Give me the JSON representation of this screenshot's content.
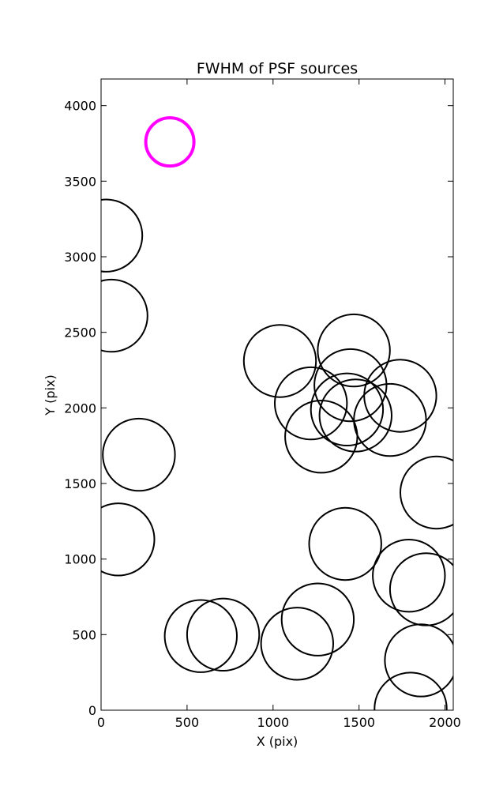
{
  "chart_data": {
    "type": "scatter",
    "title": "FWHM of PSF sources",
    "xlabel": "X (pix)",
    "ylabel": "Y (pix)",
    "xlim": [
      0,
      2048
    ],
    "ylim": [
      0,
      4176
    ],
    "xticks": [
      0,
      500,
      1000,
      1500,
      2000
    ],
    "yticks": [
      0,
      500,
      1000,
      1500,
      2000,
      2500,
      3000,
      3500,
      4000
    ],
    "grid": false,
    "legend": "none",
    "highlight_color": "#ff00ff",
    "default_color": "#000000",
    "sources": [
      {
        "x": 400,
        "y": 3760,
        "r": 140,
        "highlight": true
      },
      {
        "x": 30,
        "y": 3140,
        "r": 210
      },
      {
        "x": 60,
        "y": 2610,
        "r": 210
      },
      {
        "x": 1040,
        "y": 2310,
        "r": 210
      },
      {
        "x": 1470,
        "y": 2380,
        "r": 210
      },
      {
        "x": 1450,
        "y": 2150,
        "r": 210
      },
      {
        "x": 1740,
        "y": 2080,
        "r": 210
      },
      {
        "x": 1220,
        "y": 2030,
        "r": 210
      },
      {
        "x": 1430,
        "y": 1990,
        "r": 210
      },
      {
        "x": 1480,
        "y": 1950,
        "r": 210
      },
      {
        "x": 1680,
        "y": 1920,
        "r": 210
      },
      {
        "x": 1280,
        "y": 1810,
        "r": 210
      },
      {
        "x": 220,
        "y": 1690,
        "r": 210
      },
      {
        "x": 1950,
        "y": 1440,
        "r": 210
      },
      {
        "x": 100,
        "y": 1130,
        "r": 210
      },
      {
        "x": 1420,
        "y": 1100,
        "r": 210
      },
      {
        "x": 1790,
        "y": 890,
        "r": 210
      },
      {
        "x": 1890,
        "y": 800,
        "r": 210
      },
      {
        "x": 1260,
        "y": 600,
        "r": 210
      },
      {
        "x": 580,
        "y": 490,
        "r": 210
      },
      {
        "x": 710,
        "y": 500,
        "r": 210
      },
      {
        "x": 1140,
        "y": 440,
        "r": 210
      },
      {
        "x": 1860,
        "y": 330,
        "r": 210
      },
      {
        "x": 1800,
        "y": 10,
        "r": 210
      }
    ]
  }
}
